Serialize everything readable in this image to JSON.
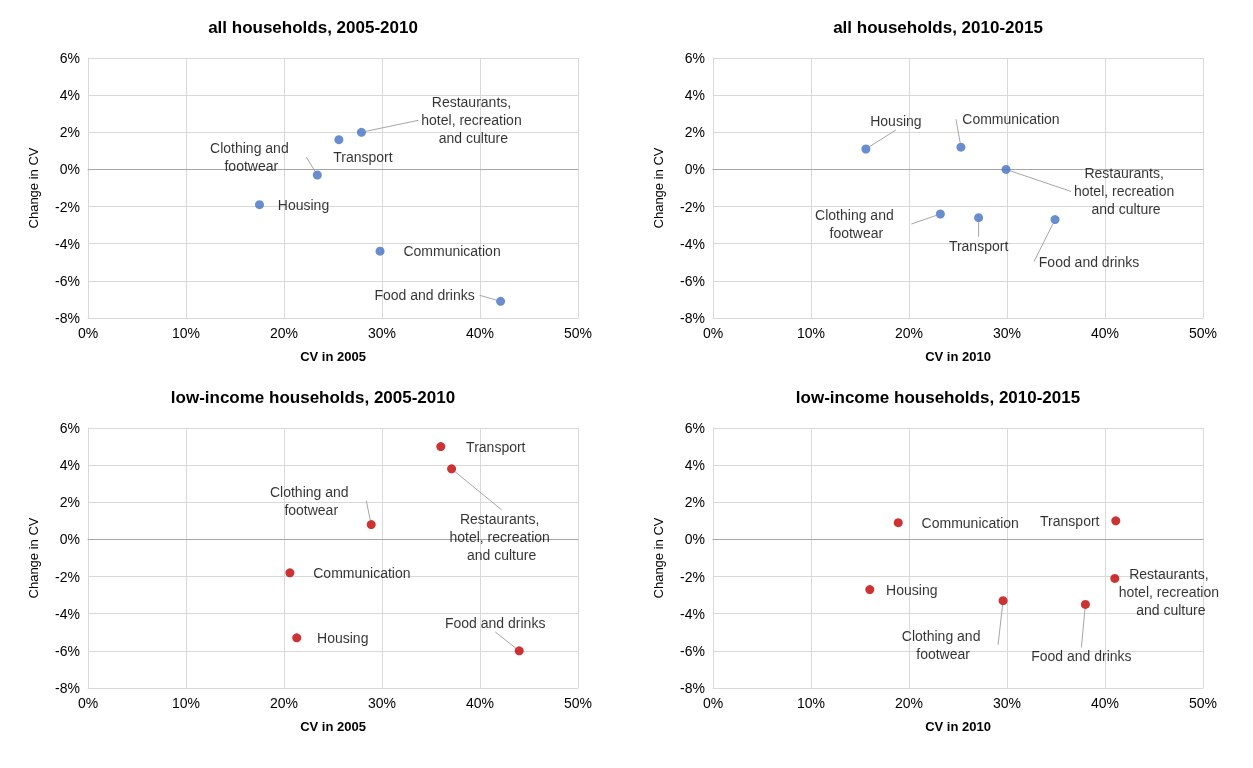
{
  "chart_data": [
    {
      "type": "scatter",
      "title": "all households, 2005-2010",
      "xlabel": "CV in 2005",
      "ylabel": "Change in CV",
      "marker": "circle",
      "grid": true,
      "xlim": [
        0,
        50
      ],
      "xticks": [
        {
          "value": 0,
          "label": "0%"
        },
        {
          "value": 10,
          "label": "10%"
        },
        {
          "value": 20,
          "label": "20%"
        },
        {
          "value": 30,
          "label": "30%"
        },
        {
          "value": 40,
          "label": "40%"
        },
        {
          "value": 50,
          "label": "50%"
        }
      ],
      "ylim": [
        -8,
        6
      ],
      "yticks": [
        {
          "value": -8,
          "label": "-8%"
        },
        {
          "value": -6,
          "label": "-6%"
        },
        {
          "value": -4,
          "label": "-4%"
        },
        {
          "value": -2,
          "label": "-2%"
        },
        {
          "value": 0,
          "label": "0%"
        },
        {
          "value": 2,
          "label": "2%"
        },
        {
          "value": 4,
          "label": "4%"
        },
        {
          "value": 6,
          "label": "6%"
        }
      ],
      "x": [
        27.9,
        25.6,
        23.4,
        17.5,
        29.8,
        42.1
      ],
      "series": [
        {
          "color": "#4472c4",
          "values": [
            2.0,
            1.6,
            -0.3,
            -1.9,
            -4.4,
            -7.1
          ]
        }
      ],
      "annotations": [
        {
          "text": "Restaurants, hotel, recreation and culture",
          "x": 27.9,
          "y": 2.0
        },
        {
          "text": "Transport",
          "x": 25.6,
          "y": 1.6
        },
        {
          "text": "Clothing and footwear",
          "x": 23.4,
          "y": -0.3
        },
        {
          "text": "Housing",
          "x": 17.5,
          "y": -1.9
        },
        {
          "text": "Communication",
          "x": 29.8,
          "y": -4.4
        },
        {
          "text": "Food and drinks",
          "x": 42.1,
          "y": -7.1
        }
      ]
    },
    {
      "type": "scatter",
      "title": "all households, 2010-2015",
      "xlabel": "CV in 2010",
      "ylabel": "Change in CV",
      "marker": "circle",
      "grid": true,
      "xlim": [
        0,
        50
      ],
      "xticks": [
        {
          "value": 0,
          "label": "0%"
        },
        {
          "value": 10,
          "label": "10%"
        },
        {
          "value": 20,
          "label": "20%"
        },
        {
          "value": 30,
          "label": "30%"
        },
        {
          "value": 40,
          "label": "40%"
        },
        {
          "value": 50,
          "label": "50%"
        }
      ],
      "ylim": [
        -8,
        6
      ],
      "yticks": [
        {
          "value": -8,
          "label": "-8%"
        },
        {
          "value": -6,
          "label": "-6%"
        },
        {
          "value": -4,
          "label": "-4%"
        },
        {
          "value": -2,
          "label": "-2%"
        },
        {
          "value": 0,
          "label": "0%"
        },
        {
          "value": 2,
          "label": "2%"
        },
        {
          "value": 4,
          "label": "4%"
        },
        {
          "value": 6,
          "label": "6%"
        }
      ],
      "x": [
        15.6,
        25.3,
        29.9,
        23.2,
        27.1,
        34.9
      ],
      "series": [
        {
          "color": "#4472c4",
          "values": [
            1.1,
            1.2,
            0.0,
            -2.4,
            -2.6,
            -2.7
          ]
        }
      ],
      "annotations": [
        {
          "text": "Housing",
          "x": 15.6,
          "y": 1.1
        },
        {
          "text": "Communication",
          "x": 25.3,
          "y": 1.2
        },
        {
          "text": "Restaurants, hotel, recreation and culture",
          "x": 29.9,
          "y": 0.0
        },
        {
          "text": "Clothing and footwear",
          "x": 23.2,
          "y": -2.4
        },
        {
          "text": "Transport",
          "x": 27.1,
          "y": -2.6
        },
        {
          "text": "Food and drinks",
          "x": 34.9,
          "y": -2.7
        }
      ]
    },
    {
      "type": "scatter",
      "title": "low-income households, 2005-2010",
      "xlabel": "CV in 2005",
      "ylabel": "Change in CV",
      "marker": "circle",
      "grid": true,
      "xlim": [
        0,
        50
      ],
      "xticks": [
        {
          "value": 0,
          "label": "0%"
        },
        {
          "value": 10,
          "label": "10%"
        },
        {
          "value": 20,
          "label": "20%"
        },
        {
          "value": 30,
          "label": "30%"
        },
        {
          "value": 40,
          "label": "40%"
        },
        {
          "value": 50,
          "label": "50%"
        }
      ],
      "ylim": [
        -8,
        6
      ],
      "yticks": [
        {
          "value": -8,
          "label": "-8%"
        },
        {
          "value": -6,
          "label": "-6%"
        },
        {
          "value": -4,
          "label": "-4%"
        },
        {
          "value": -2,
          "label": "-2%"
        },
        {
          "value": 0,
          "label": "0%"
        },
        {
          "value": 2,
          "label": "2%"
        },
        {
          "value": 4,
          "label": "4%"
        },
        {
          "value": 6,
          "label": "6%"
        }
      ],
      "x": [
        36.0,
        37.1,
        28.9,
        20.6,
        21.3,
        44.0
      ],
      "series": [
        {
          "color": "#c00000",
          "values": [
            5.0,
            3.8,
            0.8,
            -1.8,
            -5.3,
            -6.0
          ]
        }
      ],
      "annotations": [
        {
          "text": "Transport",
          "x": 36.0,
          "y": 5.0
        },
        {
          "text": "Restaurants, hotel, recreation and culture",
          "x": 37.1,
          "y": 3.8
        },
        {
          "text": "Clothing and footwear",
          "x": 28.9,
          "y": 0.8
        },
        {
          "text": "Communication",
          "x": 20.6,
          "y": -1.8
        },
        {
          "text": "Housing",
          "x": 21.3,
          "y": -5.3
        },
        {
          "text": "Food and drinks",
          "x": 44.0,
          "y": -6.0
        }
      ]
    },
    {
      "type": "scatter",
      "title": "low-income households, 2010-2015",
      "xlabel": "CV in 2010",
      "ylabel": "Change in CV",
      "marker": "circle",
      "grid": true,
      "xlim": [
        0,
        50
      ],
      "xticks": [
        {
          "value": 0,
          "label": "0%"
        },
        {
          "value": 10,
          "label": "10%"
        },
        {
          "value": 20,
          "label": "20%"
        },
        {
          "value": 30,
          "label": "30%"
        },
        {
          "value": 40,
          "label": "40%"
        },
        {
          "value": 50,
          "label": "50%"
        }
      ],
      "ylim": [
        -8,
        6
      ],
      "yticks": [
        {
          "value": -8,
          "label": "-8%"
        },
        {
          "value": -6,
          "label": "-6%"
        },
        {
          "value": -4,
          "label": "-4%"
        },
        {
          "value": -2,
          "label": "-2%"
        },
        {
          "value": 0,
          "label": "0%"
        },
        {
          "value": 2,
          "label": "2%"
        },
        {
          "value": 4,
          "label": "4%"
        },
        {
          "value": 6,
          "label": "6%"
        }
      ],
      "x": [
        41.1,
        18.9,
        41.0,
        16.0,
        29.6,
        38.0
      ],
      "series": [
        {
          "color": "#c00000",
          "values": [
            1.0,
            0.9,
            -2.1,
            -2.7,
            -3.3,
            -3.5
          ]
        }
      ],
      "annotations": [
        {
          "text": "Transport",
          "x": 41.1,
          "y": 1.0
        },
        {
          "text": "Communication",
          "x": 18.9,
          "y": 0.9
        },
        {
          "text": "Restaurants, hotel, recreation and culture",
          "x": 41.0,
          "y": -2.1
        },
        {
          "text": "Housing",
          "x": 16.0,
          "y": -2.7
        },
        {
          "text": "Clothing and footwear",
          "x": 29.6,
          "y": -3.3
        },
        {
          "text": "Food and drinks",
          "x": 38.0,
          "y": -3.5
        }
      ]
    }
  ]
}
